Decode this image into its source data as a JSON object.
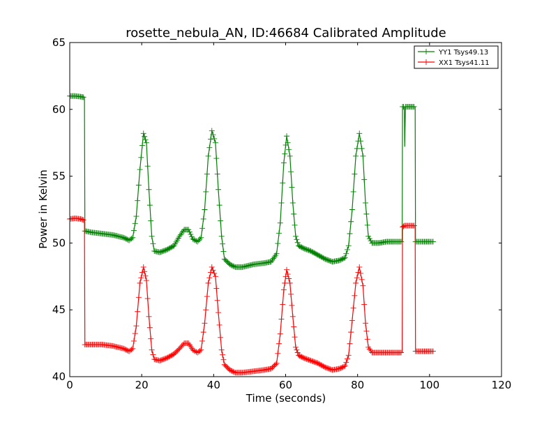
{
  "chart_data": {
    "type": "line",
    "title": "rosette_nebula_AN, ID:46684 Calibrated Amplitude",
    "xlabel": "Time (seconds)",
    "ylabel": "Power in Kelvin",
    "xlim": [
      0,
      120
    ],
    "ylim": [
      40,
      65
    ],
    "xticks": [
      "0",
      "20",
      "40",
      "60",
      "80",
      "100",
      "120"
    ],
    "yticks": [
      "40",
      "45",
      "50",
      "55",
      "60",
      "65"
    ],
    "grid": false,
    "legend_position": "top-right",
    "marker": "+",
    "series": [
      {
        "name": "YY1 Tsys49.13",
        "color": "#008000",
        "points": [
          [
            0.0,
            61.0
          ],
          [
            1.5,
            61.0
          ],
          [
            3.0,
            60.95
          ],
          [
            4.1,
            60.9
          ],
          [
            4.2,
            50.9
          ],
          [
            6.0,
            50.8
          ],
          [
            9.0,
            50.7
          ],
          [
            12.0,
            50.6
          ],
          [
            15.0,
            50.4
          ],
          [
            16.5,
            50.2
          ],
          [
            17.5,
            50.4
          ],
          [
            18.5,
            52.0
          ],
          [
            19.5,
            55.5
          ],
          [
            20.5,
            58.2
          ],
          [
            21.3,
            57.5
          ],
          [
            22.0,
            54.0
          ],
          [
            22.8,
            50.5
          ],
          [
            23.5,
            49.4
          ],
          [
            25.0,
            49.3
          ],
          [
            27.0,
            49.5
          ],
          [
            29.0,
            49.8
          ],
          [
            30.5,
            50.5
          ],
          [
            31.8,
            51.0
          ],
          [
            33.0,
            51.0
          ],
          [
            34.2,
            50.3
          ],
          [
            35.5,
            50.1
          ],
          [
            36.5,
            50.4
          ],
          [
            37.5,
            52.5
          ],
          [
            38.5,
            56.5
          ],
          [
            39.5,
            58.4
          ],
          [
            40.5,
            57.5
          ],
          [
            41.3,
            54.0
          ],
          [
            42.2,
            50.5
          ],
          [
            43.0,
            48.8
          ],
          [
            44.5,
            48.4
          ],
          [
            46.0,
            48.2
          ],
          [
            48.0,
            48.2
          ],
          [
            51.0,
            48.4
          ],
          [
            54.0,
            48.5
          ],
          [
            56.0,
            48.6
          ],
          [
            57.5,
            49.2
          ],
          [
            58.5,
            51.5
          ],
          [
            59.5,
            56.0
          ],
          [
            60.3,
            58.0
          ],
          [
            61.2,
            56.5
          ],
          [
            62.0,
            53.0
          ],
          [
            62.8,
            50.5
          ],
          [
            63.6,
            49.8
          ],
          [
            65.0,
            49.6
          ],
          [
            67.0,
            49.4
          ],
          [
            69.0,
            49.1
          ],
          [
            71.0,
            48.8
          ],
          [
            73.0,
            48.6
          ],
          [
            75.0,
            48.7
          ],
          [
            76.5,
            48.9
          ],
          [
            77.5,
            49.8
          ],
          [
            78.5,
            52.5
          ],
          [
            79.5,
            56.5
          ],
          [
            80.5,
            58.2
          ],
          [
            81.5,
            56.5
          ],
          [
            82.2,
            53.0
          ],
          [
            83.0,
            50.5
          ],
          [
            84.0,
            50.0
          ],
          [
            86.0,
            50.0
          ],
          [
            88.0,
            50.1
          ],
          [
            90.0,
            50.1
          ],
          [
            92.4,
            50.1
          ],
          [
            92.5,
            60.2
          ],
          [
            93.0,
            60.2
          ],
          [
            93.1,
            57.2
          ],
          [
            93.3,
            60.2
          ],
          [
            94.5,
            60.2
          ],
          [
            96.0,
            60.2
          ],
          [
            96.1,
            50.1
          ],
          [
            98.0,
            50.1
          ],
          [
            100.0,
            50.1
          ],
          [
            101.0,
            50.1
          ]
        ]
      },
      {
        "name": "XX1 Tsys41.11",
        "color": "#ff0000",
        "points": [
          [
            0.0,
            51.8
          ],
          [
            1.5,
            51.85
          ],
          [
            3.0,
            51.8
          ],
          [
            4.1,
            51.7
          ],
          [
            4.2,
            42.4
          ],
          [
            6.0,
            42.4
          ],
          [
            9.0,
            42.4
          ],
          [
            12.0,
            42.3
          ],
          [
            15.0,
            42.1
          ],
          [
            16.5,
            41.9
          ],
          [
            17.5,
            42.1
          ],
          [
            18.5,
            43.8
          ],
          [
            19.5,
            47.0
          ],
          [
            20.5,
            48.2
          ],
          [
            21.3,
            47.2
          ],
          [
            22.0,
            44.5
          ],
          [
            22.8,
            42.0
          ],
          [
            23.5,
            41.3
          ],
          [
            25.0,
            41.2
          ],
          [
            27.0,
            41.4
          ],
          [
            29.0,
            41.7
          ],
          [
            30.5,
            42.1
          ],
          [
            31.8,
            42.5
          ],
          [
            33.0,
            42.5
          ],
          [
            34.2,
            42.0
          ],
          [
            35.5,
            41.8
          ],
          [
            36.5,
            42.0
          ],
          [
            37.5,
            44.0
          ],
          [
            38.5,
            47.0
          ],
          [
            39.5,
            48.2
          ],
          [
            40.5,
            47.5
          ],
          [
            41.3,
            44.8
          ],
          [
            42.2,
            42.0
          ],
          [
            43.0,
            40.9
          ],
          [
            44.5,
            40.5
          ],
          [
            46.0,
            40.3
          ],
          [
            48.0,
            40.3
          ],
          [
            51.0,
            40.4
          ],
          [
            54.0,
            40.5
          ],
          [
            56.0,
            40.6
          ],
          [
            57.5,
            41.0
          ],
          [
            58.5,
            43.2
          ],
          [
            59.5,
            46.5
          ],
          [
            60.3,
            48.0
          ],
          [
            61.2,
            47.0
          ],
          [
            62.0,
            44.5
          ],
          [
            62.8,
            42.2
          ],
          [
            63.6,
            41.6
          ],
          [
            65.0,
            41.4
          ],
          [
            67.0,
            41.2
          ],
          [
            69.0,
            41.0
          ],
          [
            71.0,
            40.7
          ],
          [
            73.0,
            40.5
          ],
          [
            75.0,
            40.6
          ],
          [
            76.5,
            40.8
          ],
          [
            77.5,
            41.6
          ],
          [
            78.5,
            44.2
          ],
          [
            79.5,
            47.0
          ],
          [
            80.5,
            48.2
          ],
          [
            81.5,
            46.8
          ],
          [
            82.2,
            44.0
          ],
          [
            83.0,
            42.2
          ],
          [
            84.0,
            41.8
          ],
          [
            86.0,
            41.8
          ],
          [
            88.0,
            41.8
          ],
          [
            90.0,
            41.8
          ],
          [
            92.4,
            41.8
          ],
          [
            92.5,
            51.2
          ],
          [
            93.0,
            51.3
          ],
          [
            94.5,
            51.3
          ],
          [
            96.0,
            51.3
          ],
          [
            96.1,
            41.9
          ],
          [
            98.0,
            41.9
          ],
          [
            100.0,
            41.9
          ],
          [
            101.0,
            41.9
          ]
        ]
      }
    ]
  }
}
